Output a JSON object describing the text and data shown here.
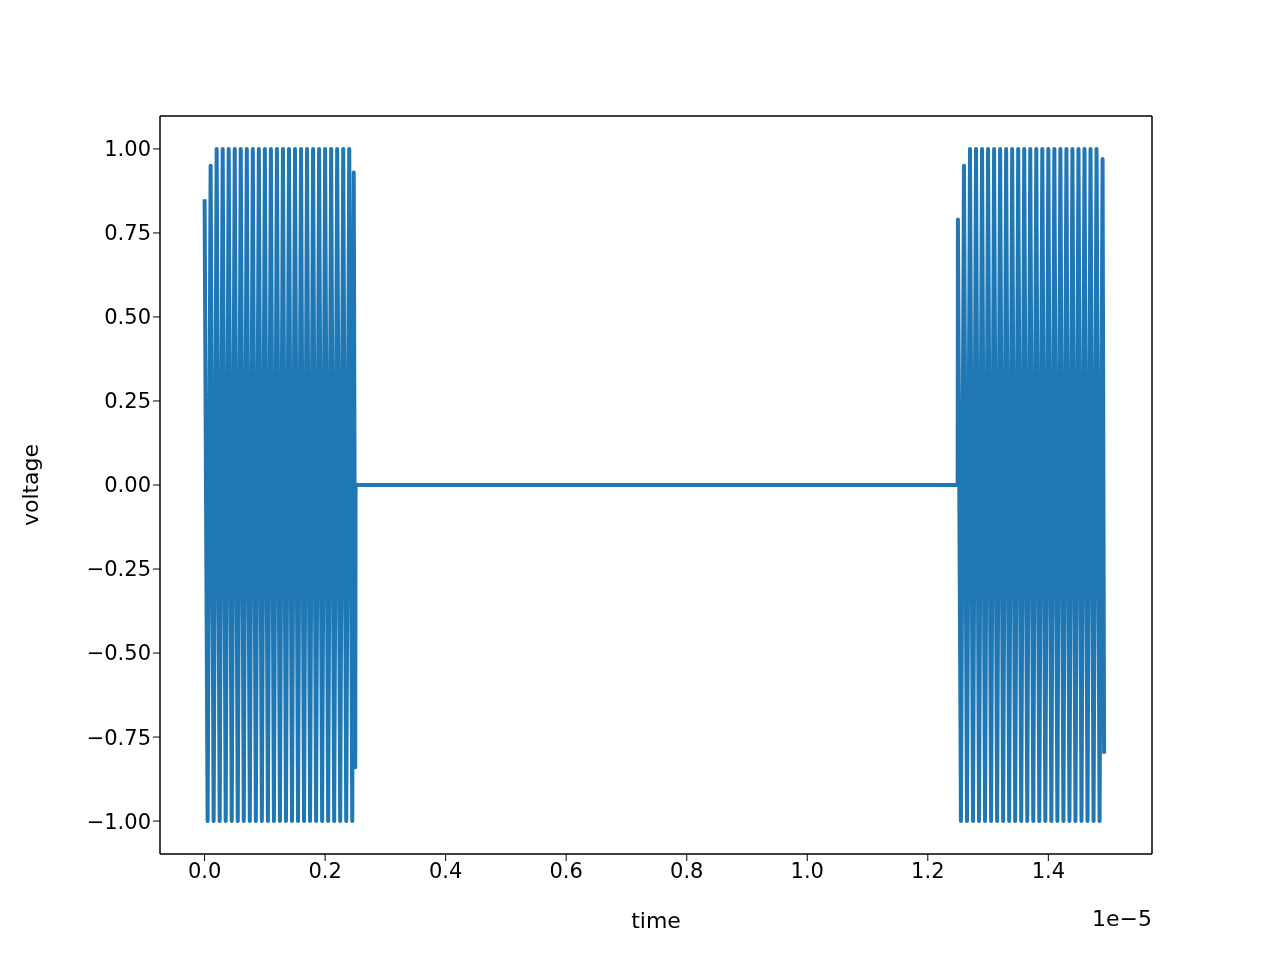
{
  "chart_data": {
    "type": "line",
    "xlabel": "time",
    "ylabel": "voltage",
    "annotations": [
      "1e−5"
    ],
    "xlim": [
      -0.074,
      1.572
    ],
    "ylim": [
      -1.098,
      1.098
    ],
    "xticks": [
      {
        "value": 0,
        "label": "0.0"
      },
      {
        "value": 0.2,
        "label": "0.2"
      },
      {
        "value": 0.4,
        "label": "0.4"
      },
      {
        "value": 0.6,
        "label": "0.6"
      },
      {
        "value": 0.8,
        "label": "0.8"
      },
      {
        "value": 1,
        "label": "1.0"
      },
      {
        "value": 1.2,
        "label": "1.2"
      },
      {
        "value": 1.4,
        "label": "1.4"
      }
    ],
    "yticks": [
      {
        "value": -1,
        "label": "−1.00"
      },
      {
        "value": -0.75,
        "label": "−0.75"
      },
      {
        "value": -0.5,
        "label": "−0.50"
      },
      {
        "value": -0.25,
        "label": "−0.25"
      },
      {
        "value": 0,
        "label": "0.00"
      },
      {
        "value": 0.25,
        "label": "0.25"
      },
      {
        "value": 0.5,
        "label": "0.50"
      },
      {
        "value": 0.75,
        "label": "0.75"
      },
      {
        "value": 1,
        "label": "1.00"
      }
    ],
    "marker": "none",
    "line_style": "solid",
    "series": [
      {
        "color": "#1f77b4",
        "x": [
          0,
          0.005,
          0.01,
          0.015,
          0.02,
          0.025,
          0.03,
          0.035,
          0.04,
          0.045,
          0.05,
          0.055,
          0.06,
          0.065,
          0.07,
          0.075,
          0.08,
          0.085,
          0.09,
          0.095,
          0.1,
          0.105,
          0.11,
          0.115,
          0.12,
          0.125,
          0.13,
          0.135,
          0.14,
          0.145,
          0.15,
          0.155,
          0.16,
          0.165,
          0.17,
          0.175,
          0.18,
          0.185,
          0.19,
          0.195,
          0.2,
          0.205,
          0.21,
          0.215,
          0.22,
          0.225,
          0.23,
          0.235,
          0.24,
          0.245,
          0.2475,
          0.25,
          0.2505,
          1.2495,
          1.25,
          1.255,
          1.26,
          1.265,
          1.27,
          1.275,
          1.28,
          1.285,
          1.29,
          1.295,
          1.3,
          1.305,
          1.31,
          1.315,
          1.32,
          1.325,
          1.33,
          1.335,
          1.34,
          1.345,
          1.35,
          1.355,
          1.36,
          1.365,
          1.37,
          1.375,
          1.38,
          1.385,
          1.39,
          1.395,
          1.4,
          1.405,
          1.41,
          1.415,
          1.42,
          1.425,
          1.43,
          1.435,
          1.44,
          1.445,
          1.45,
          1.455,
          1.46,
          1.465,
          1.47,
          1.475,
          1.48,
          1.485,
          1.49,
          1.4925
        ],
        "values": [
          0.85,
          -1,
          0.95,
          -1,
          1,
          -1,
          1,
          -1,
          1,
          -1,
          1,
          -1,
          1,
          -1,
          1,
          -1,
          1,
          -1,
          1,
          -1,
          1,
          -1,
          1,
          -1,
          1,
          -1,
          1,
          -1,
          1,
          -1,
          1,
          -1,
          1,
          -1,
          1,
          -1,
          1,
          -1,
          1,
          -1,
          1,
          -1,
          1,
          -1,
          1,
          -1,
          1,
          -1,
          1,
          -1,
          0.93,
          -0.84,
          0,
          0,
          0.79,
          -1,
          0.95,
          -1,
          1,
          -1,
          1,
          -1,
          1,
          -1,
          1,
          -1,
          1,
          -1,
          1,
          -1,
          1,
          -1,
          1,
          -1,
          1,
          -1,
          1,
          -1,
          1,
          -1,
          1,
          -1,
          1,
          -1,
          1,
          -1,
          1,
          -1,
          1,
          -1,
          1,
          -1,
          1,
          -1,
          1,
          -1,
          1,
          -1,
          1,
          -1,
          1,
          -1,
          0.97,
          -0.8
        ]
      }
    ]
  }
}
